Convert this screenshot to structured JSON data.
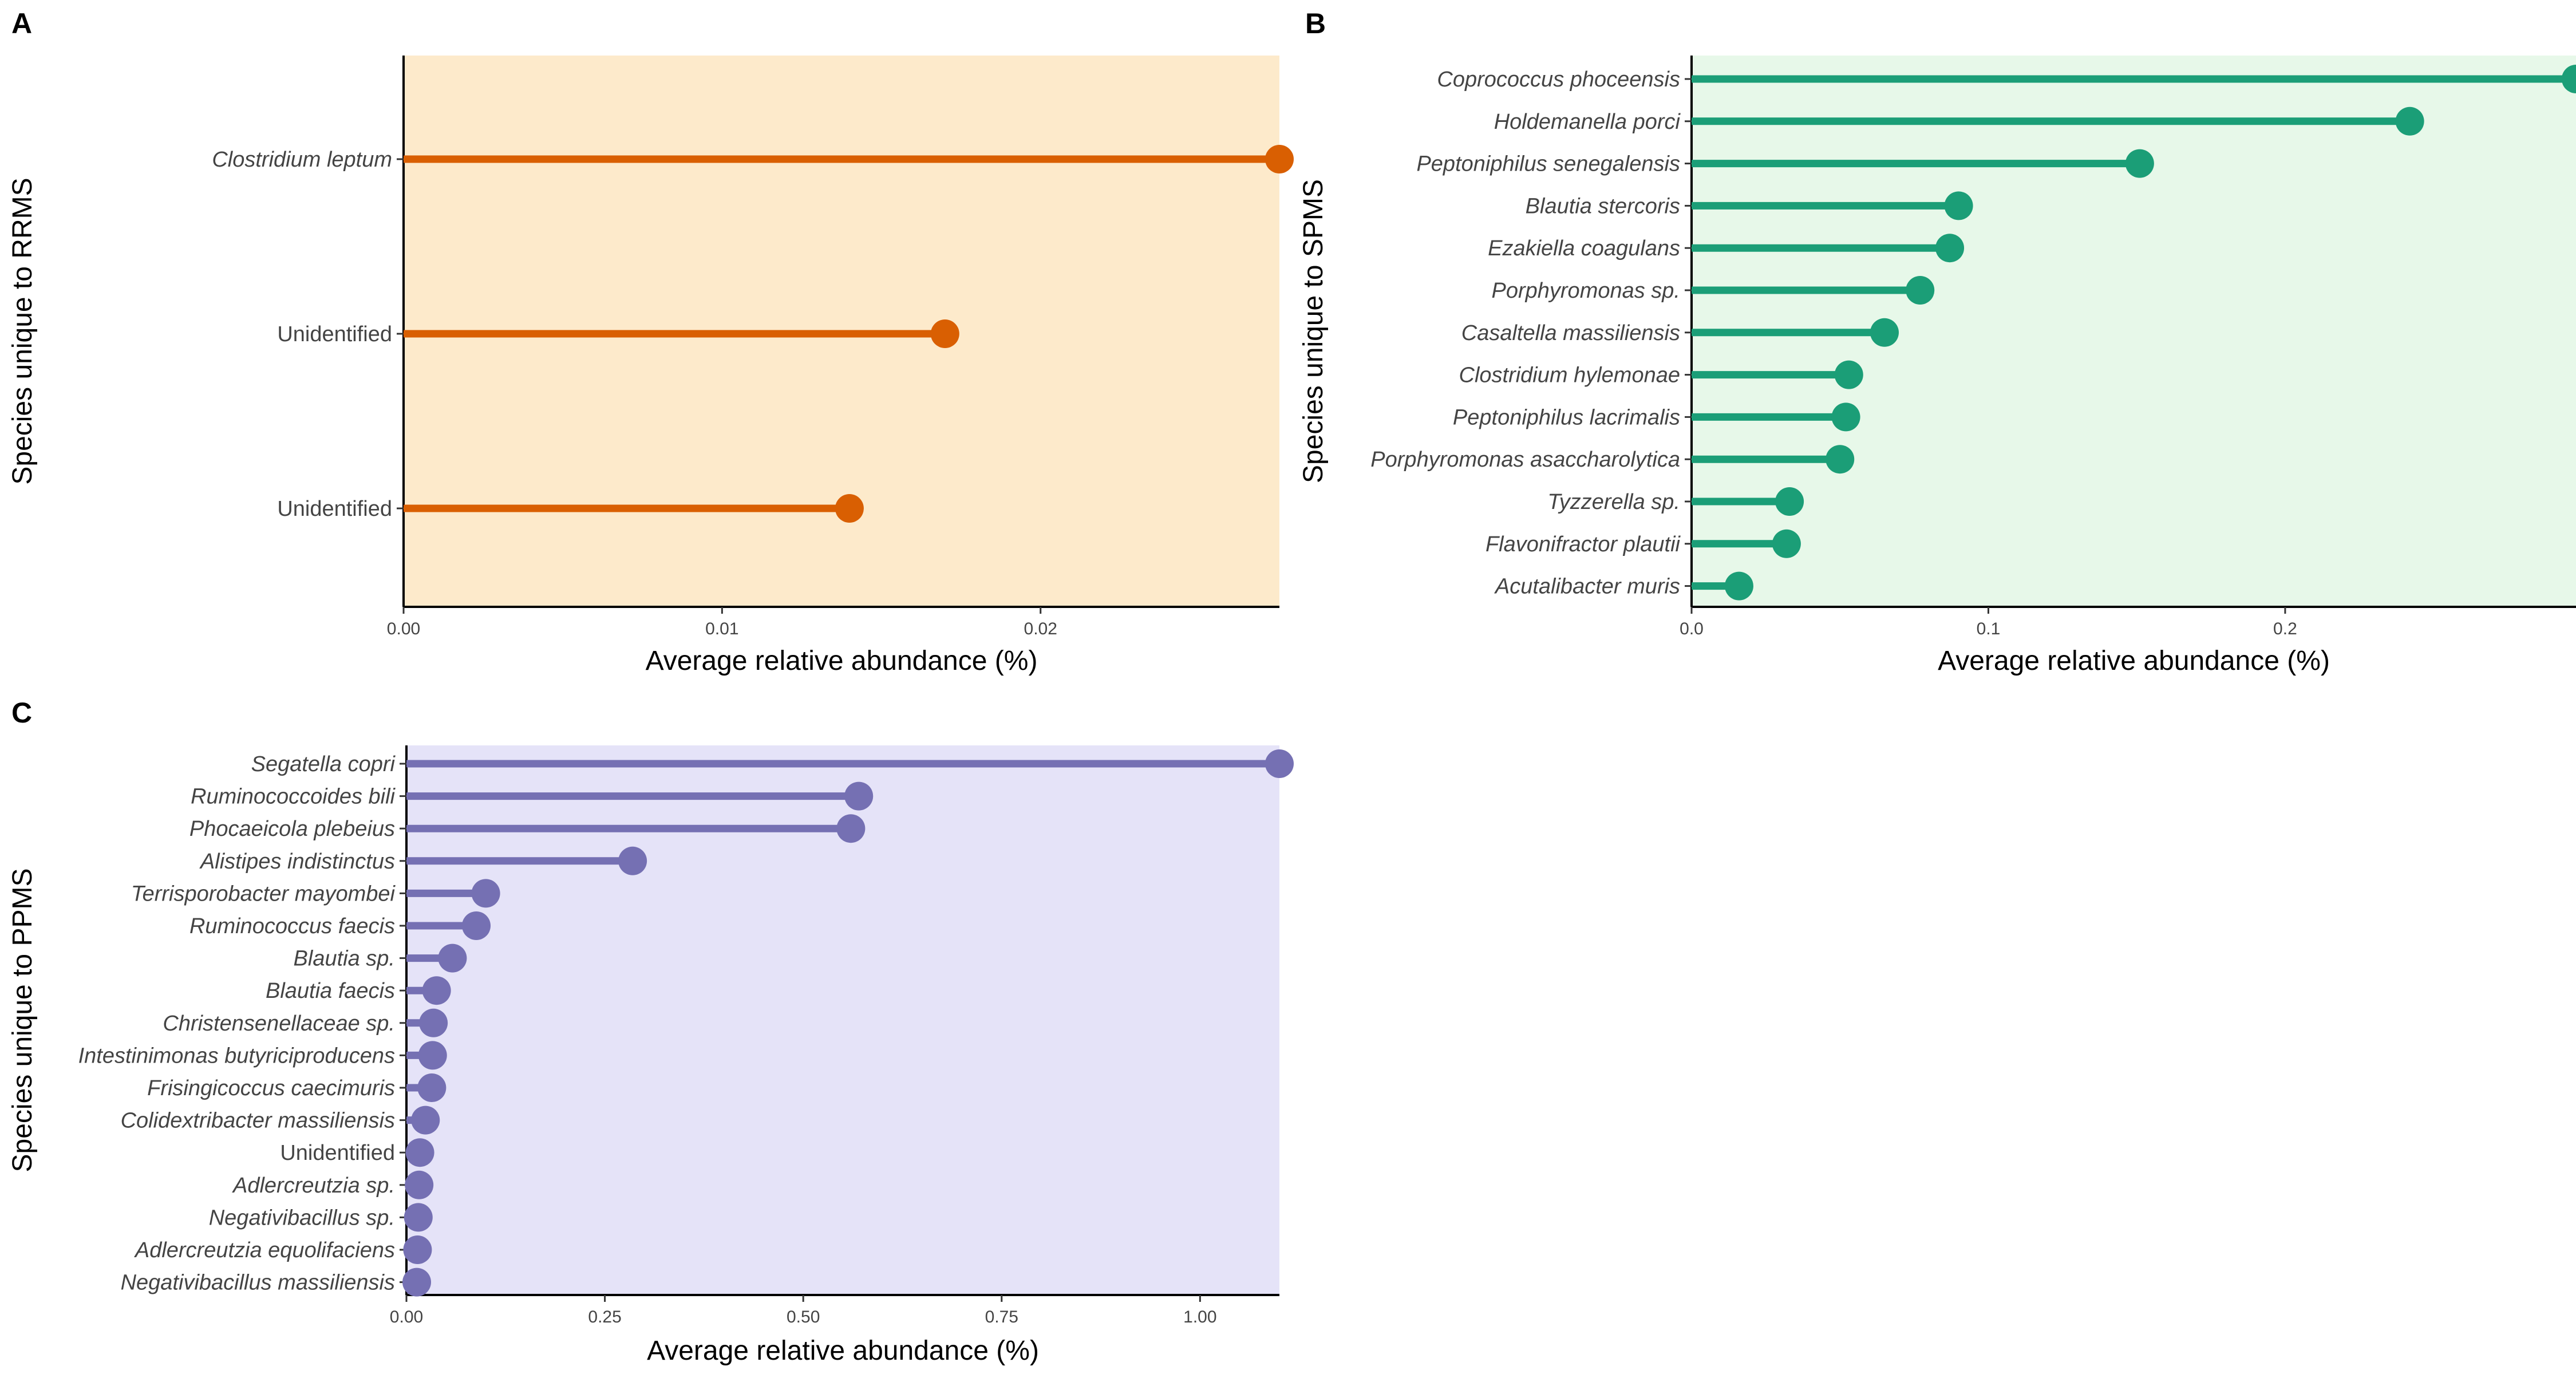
{
  "chart_data": [
    {
      "type": "lollipop",
      "panel_label": "A",
      "xlabel": "Average relative abundance (%)",
      "ylabel": "Species unique to RRMS",
      "xlim": [
        0,
        0.0275
      ],
      "xticks": [
        0,
        0.01,
        0.02
      ],
      "xtick_labels": [
        "0.00",
        "0.01",
        "0.02"
      ],
      "color": "#D95F02",
      "background": "#FDEACB",
      "categories": [
        "Clostridium leptum",
        "Unidentified",
        "Unidentified"
      ],
      "italic": [
        true,
        false,
        false
      ],
      "values": [
        0.0275,
        0.017,
        0.014
      ]
    },
    {
      "type": "lollipop",
      "panel_label": "B",
      "xlabel": "Average relative abundance (%)",
      "ylabel": "Species unique to SPMS",
      "xlim": [
        0,
        0.298
      ],
      "xticks": [
        0,
        0.1,
        0.2
      ],
      "xtick_labels": [
        "0.0",
        "0.1",
        "0.2"
      ],
      "color": "#1B9E77",
      "background": "#E7F8E9",
      "categories": [
        "Coprococcus phoceensis",
        "Holdemanella porci",
        "Peptoniphilus senegalensis",
        "Blautia stercoris",
        "Ezakiella coagulans",
        "Porphyromonas sp.",
        "Casaltella massiliensis",
        "Clostridium hylemonae",
        "Peptoniphilus lacrimalis",
        "Porphyromonas asaccharolytica",
        "Tyzzerella sp.",
        "Flavonifractor plautii",
        "Acutalibacter muris"
      ],
      "italic": [
        true,
        true,
        true,
        true,
        true,
        true,
        true,
        true,
        true,
        true,
        true,
        true,
        true
      ],
      "values": [
        0.298,
        0.242,
        0.151,
        0.09,
        0.087,
        0.077,
        0.065,
        0.053,
        0.052,
        0.05,
        0.033,
        0.032,
        0.016
      ]
    },
    {
      "type": "lollipop",
      "panel_label": "C",
      "xlabel": "Average relative abundance (%)",
      "ylabel": "Species unique to PPMS",
      "xlim": [
        0,
        1.1
      ],
      "xticks": [
        0,
        0.25,
        0.5,
        0.75,
        1.0
      ],
      "xtick_labels": [
        "0.00",
        "0.25",
        "0.50",
        "0.75",
        "1.00"
      ],
      "color": "#7570B3",
      "background": "#E5E3F8",
      "categories": [
        "Segatella copri",
        "Ruminococcoides bili",
        "Phocaeicola plebeius",
        "Alistipes indistinctus",
        "Terrisporobacter mayombei",
        "Ruminococcus faecis",
        "Blautia sp.",
        "Blautia faecis",
        "Christensenellaceae sp.",
        "Intestinimonas butyriciproducens",
        "Frisingicoccus caecimuris",
        "Colidextribacter massiliensis",
        "Unidentified",
        "Adlercreutzia sp.",
        "Negativibacillus sp.",
        "Adlercreutzia equolifaciens",
        "Negativibacillus massiliensis"
      ],
      "italic": [
        true,
        true,
        true,
        true,
        true,
        true,
        true,
        true,
        true,
        true,
        true,
        true,
        false,
        true,
        true,
        true,
        true
      ],
      "values": [
        1.1,
        0.57,
        0.56,
        0.285,
        0.1,
        0.088,
        0.058,
        0.038,
        0.034,
        0.033,
        0.032,
        0.024,
        0.017,
        0.016,
        0.015,
        0.014,
        0.013
      ]
    }
  ]
}
